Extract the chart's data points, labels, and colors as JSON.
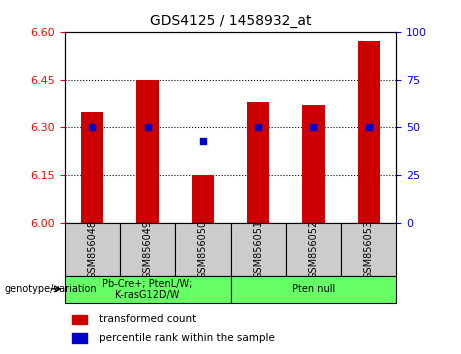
{
  "title": "GDS4125 / 1458932_at",
  "samples": [
    "GSM856048",
    "GSM856049",
    "GSM856050",
    "GSM856051",
    "GSM856052",
    "GSM856053"
  ],
  "transformed_counts": [
    6.35,
    6.45,
    6.15,
    6.38,
    6.37,
    6.57
  ],
  "percentile_ranks": [
    50,
    50,
    43,
    50,
    50,
    50
  ],
  "bar_color": "#CC0000",
  "dot_color": "#0000CC",
  "ylim_left": [
    6.0,
    6.6
  ],
  "ylim_right": [
    0,
    100
  ],
  "yticks_left": [
    6.0,
    6.15,
    6.3,
    6.45,
    6.6
  ],
  "yticks_right": [
    0,
    25,
    50,
    75,
    100
  ],
  "hlines": [
    6.15,
    6.3,
    6.45
  ],
  "group1_label": "Pb-Cre+; PtenL/W;\nK-rasG12D/W",
  "group2_label": "Pten null",
  "group1_color": "#66FF66",
  "group2_color": "#66FF66",
  "genotype_label": "genotype/variation",
  "legend_bar_label": "transformed count",
  "legend_dot_label": "percentile rank within the sample",
  "tick_area_color": "#CCCCCC",
  "bar_width": 0.4
}
